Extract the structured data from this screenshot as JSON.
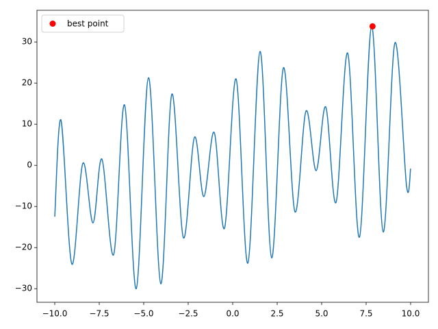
{
  "chart_data": {
    "type": "line",
    "series": [
      {
        "color": "#1f77b4",
        "x": [
          -10,
          -9.65,
          -9.04,
          -8.42,
          -7.85,
          -7.35,
          -6.69,
          -6.08,
          -5.42,
          -4.73,
          -4.04,
          -3.42,
          -2.77,
          -2.15,
          -1.62,
          -1.04,
          -0.46,
          0.19,
          0.85,
          1.54,
          2.19,
          2.85,
          3.5,
          4.12,
          4.69,
          5.23,
          5.81,
          6.46,
          7.12,
          7.81,
          8.46,
          9.12,
          9.77,
          10
        ],
        "values": [
          -12.5,
          11,
          -24,
          0.5,
          -14,
          1.5,
          -21.7,
          14.7,
          -30,
          21.3,
          -28.8,
          17.3,
          -17.6,
          6.8,
          -7.6,
          8,
          -15.3,
          21,
          -23.8,
          27.7,
          -22.5,
          23.7,
          -11.3,
          13.2,
          -1.3,
          14.2,
          -9,
          27.3,
          -17.5,
          33.8,
          -16.2,
          29.8,
          -5,
          -0.8
        ]
      }
    ],
    "scatter": {
      "name": "best point",
      "color": "#ff0000",
      "x": [
        7.86
      ],
      "values": [
        33.8
      ]
    },
    "xlim": [
      -11,
      11
    ],
    "ylim": [
      -33.3,
      37.7
    ],
    "xticks": [
      {
        "value": -10,
        "label": "−10.0"
      },
      {
        "value": -7.5,
        "label": "−7.5"
      },
      {
        "value": -5,
        "label": "−5.0"
      },
      {
        "value": -2.5,
        "label": "−2.5"
      },
      {
        "value": 0,
        "label": "0.0"
      },
      {
        "value": 2.5,
        "label": "2.5"
      },
      {
        "value": 5,
        "label": "5.0"
      },
      {
        "value": 7.5,
        "label": "7.5"
      },
      {
        "value": 10,
        "label": "10.0"
      }
    ],
    "yticks": [
      {
        "value": -30,
        "label": "−30"
      },
      {
        "value": -20,
        "label": "−20"
      },
      {
        "value": -10,
        "label": "−10"
      },
      0,
      10,
      20,
      30
    ],
    "legend": "upper left"
  }
}
